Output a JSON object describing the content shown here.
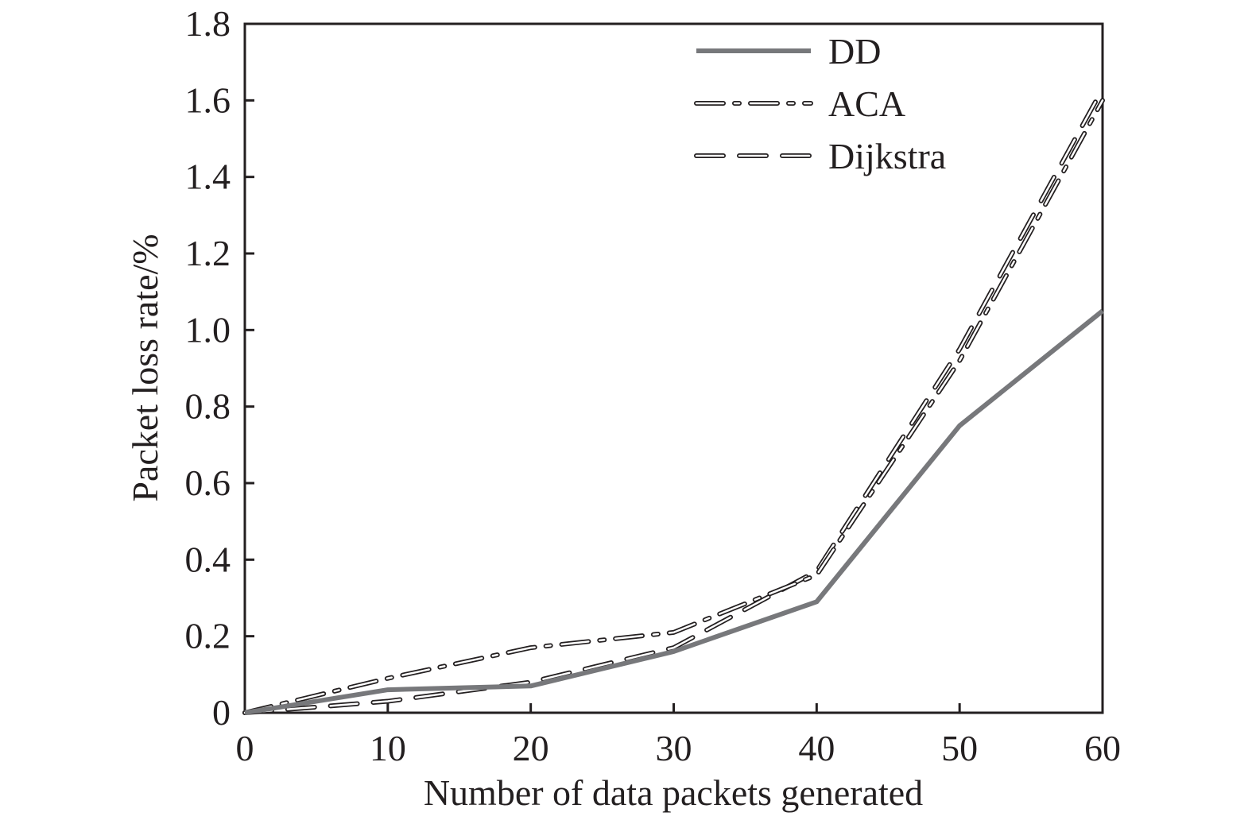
{
  "chart_data": {
    "type": "line",
    "title": "",
    "xlabel": "Number of data packets generated",
    "ylabel": "Packet loss rate/%",
    "xlim": [
      0,
      60
    ],
    "ylim": [
      0,
      1.8
    ],
    "x_ticks": [
      0,
      10,
      20,
      30,
      40,
      50,
      60
    ],
    "x_tick_labels": [
      "0",
      "10",
      "20",
      "30",
      "40",
      "50",
      "60"
    ],
    "y_ticks": [
      0,
      0.2,
      0.4,
      0.6,
      0.8,
      1.0,
      1.2,
      1.4,
      1.6,
      1.8
    ],
    "y_tick_labels": [
      "0",
      "0.2",
      "0.4",
      "0.6",
      "0.8",
      "1.0",
      "1.2",
      "1.4",
      "1.6",
      "1.8"
    ],
    "grid": false,
    "legend_position": "top-right",
    "x": [
      0,
      10,
      20,
      30,
      40,
      50,
      60
    ],
    "series": [
      {
        "name": "DD",
        "style": "solid",
        "color": "#77787b",
        "values": [
          0,
          0.06,
          0.07,
          0.16,
          0.29,
          0.75,
          1.05
        ]
      },
      {
        "name": "ACA",
        "style": "dash-dot",
        "color": "#231f20",
        "values": [
          0,
          0.09,
          0.17,
          0.21,
          0.36,
          0.92,
          1.6
        ]
      },
      {
        "name": "Dijkstra",
        "style": "dashed",
        "color": "#231f20",
        "values": [
          0,
          0.03,
          0.08,
          0.17,
          0.37,
          0.95,
          1.63
        ]
      }
    ]
  }
}
